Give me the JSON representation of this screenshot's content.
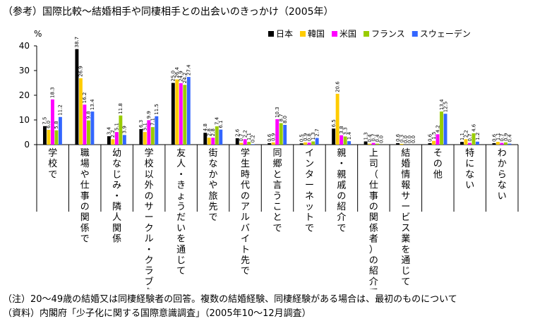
{
  "title": "（参考）国際比較～結婚相手や同棲相手との出会いのきっかけ（2005年）",
  "notes": {
    "note1": "（注）20～49歳の結婚又は同棲経験者の回答。複数の結婚経験、同棲経験がある場合は、最初のものについて",
    "source": "（資料）内閣府「少子化に関する国際意識調査」（2005年10～12月調査）"
  },
  "chart_data": {
    "type": "bar",
    "ylabel": "%",
    "ylim": [
      0,
      40
    ],
    "yticks": [
      0,
      10,
      20,
      30,
      40
    ],
    "legend_position": "top-right",
    "categories": [
      "学校で",
      "職場や仕事の関係で",
      "幼なじみ・隣人関係",
      "学校以外のサークル・クラブなどで",
      "友人・きょうだいを通じて",
      "街なかや旅先で",
      "学生時代のアルバイト先で",
      "同郷と言うことで",
      "インターネットで",
      "親・親戚の紹介で",
      "上司（仕事の関係者）の紹介で",
      "結婚情報サービス業を通じて",
      "その他",
      "特にない",
      "わからない"
    ],
    "series": [
      {
        "name": "日本",
        "color": "#000000",
        "values": [
          7.5,
          38.7,
          3.4,
          6.3,
          25.0,
          4.8,
          2.6,
          0.6,
          0.5,
          6.5,
          1.3,
          0.6,
          0.6,
          1.1,
          0.6
        ]
      },
      {
        "name": "韓国",
        "color": "#ffcc00",
        "values": [
          6.0,
          26.9,
          2.2,
          5.1,
          26.4,
          2.8,
          0.7,
          0.9,
          0.9,
          20.6,
          0.4,
          0.3,
          1.5,
          2.2,
          1.1
        ]
      },
      {
        "name": "米国",
        "color": "#ff00ff",
        "values": [
          18.3,
          16.2,
          5.1,
          9.9,
          24.9,
          2.8,
          2.2,
          10.3,
          0.8,
          3.8,
          0.7,
          0.0,
          4.2,
          0.7,
          0.7
        ]
      },
      {
        "name": "フランス",
        "color": "#99cc00",
        "values": [
          5.8,
          9.8,
          11.8,
          7.1,
          24.2,
          7.4,
          1.1,
          8.7,
          1.3,
          3.3,
          0.4,
          0.0,
          13.4,
          4.6,
          0.9
        ]
      },
      {
        "name": "スウェーデン",
        "color": "#3366ff",
        "values": [
          11.2,
          13.4,
          3.9,
          11.5,
          27.4,
          6.1,
          0.2,
          8.0,
          2.7,
          1.4,
          0.0,
          0.0,
          12.5,
          1.2,
          0.4
        ]
      }
    ]
  }
}
